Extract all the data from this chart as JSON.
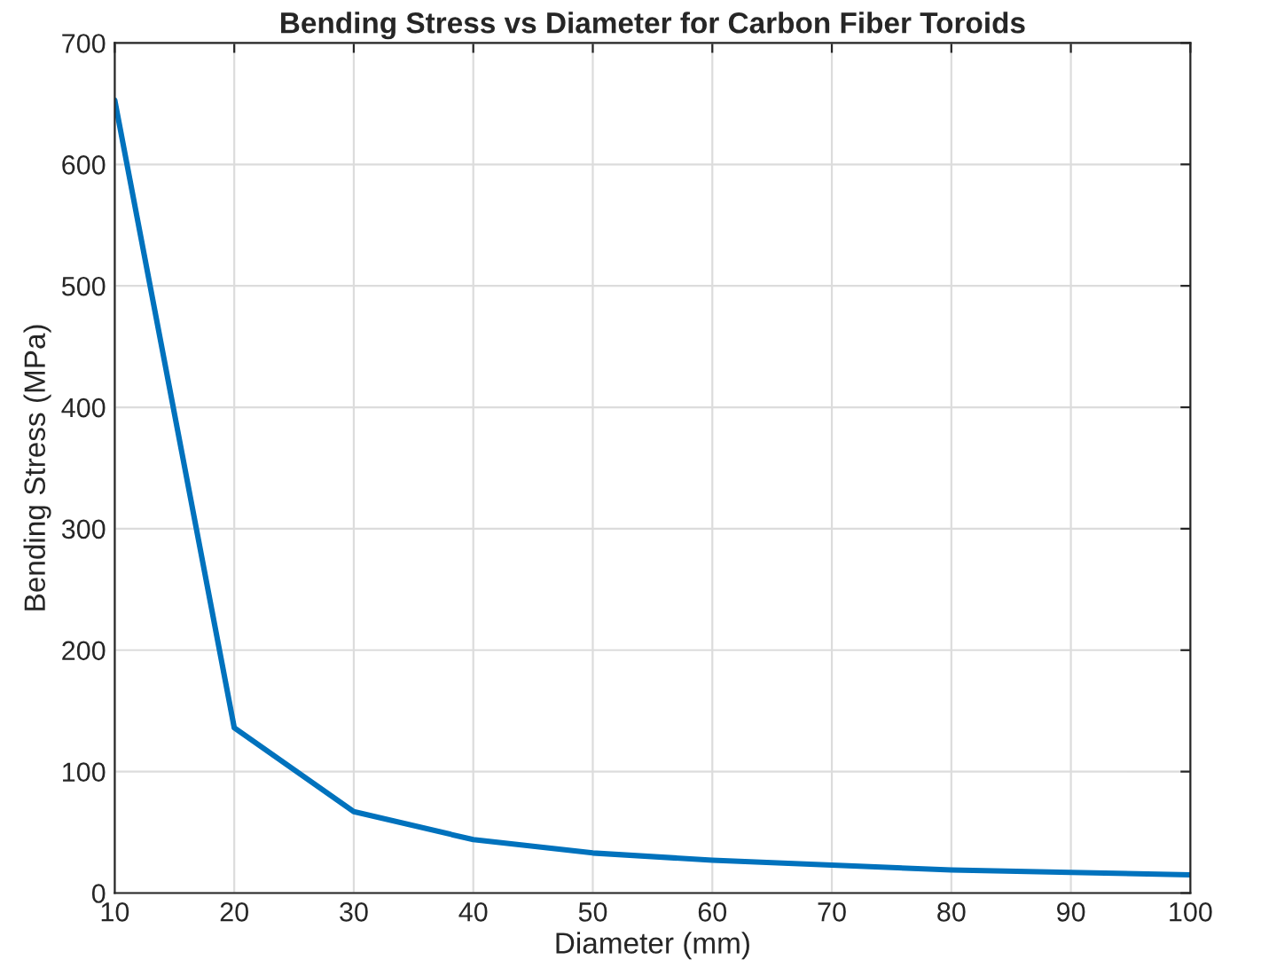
{
  "chart_data": {
    "type": "line",
    "title": "Bending Stress vs Diameter for Carbon Fiber Toroids",
    "xlabel": "Diameter (mm)",
    "ylabel": "Bending Stress (MPa)",
    "x": [
      10,
      20,
      30,
      40,
      50,
      60,
      70,
      80,
      90,
      100
    ],
    "series": [
      {
        "color": "#0072bd",
        "values": [
          653,
          136,
          67,
          44,
          33,
          27,
          23,
          19,
          17,
          15
        ]
      }
    ],
    "xlim": [
      10,
      100
    ],
    "xticks": [
      10,
      20,
      30,
      40,
      50,
      60,
      70,
      80,
      90,
      100
    ],
    "ylim": [
      0,
      700
    ],
    "yticks": [
      0,
      100,
      200,
      300,
      400,
      500,
      600,
      700
    ],
    "grid": true,
    "marker": "none",
    "line_style": "solid"
  }
}
